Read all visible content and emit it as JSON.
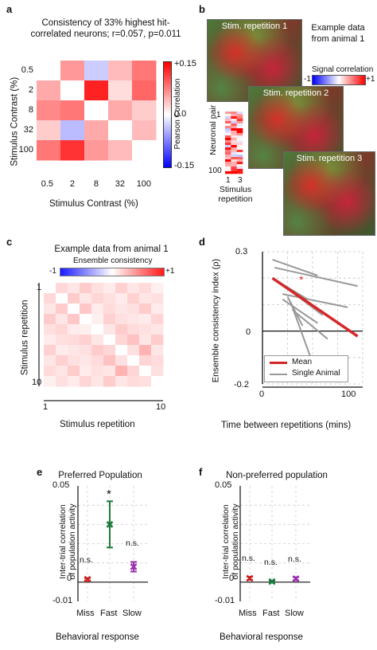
{
  "panels": {
    "a": {
      "label": "a",
      "title_line1": "Consistency of 33% highest hit-",
      "title_line2": "correlated neurons; r=0.057, p=0.011",
      "ylabel": "Stimulus Contrast (%)",
      "xlabel": "Stimulus Contrast (%)",
      "ticks": [
        "0.5",
        "2",
        "8",
        "32",
        "100"
      ],
      "colorbar_label": "Pearson Correlation",
      "colorbar_ticks": [
        "+0.15",
        "0.0",
        "-0.15"
      ]
    },
    "b": {
      "label": "b",
      "example_line1": "Example data",
      "example_line2": "from animal 1",
      "signal_corr_label": "Signal correlation",
      "signal_min": "-1",
      "signal_max": "+1",
      "stim_labels": [
        "Stim. repetition 1",
        "Stim. repetition 2",
        "Stim. repetition 3"
      ],
      "neuronal_pair": "Neuronal pair",
      "pair_ticks": [
        "1",
        "100"
      ],
      "rep_ticks": [
        "1",
        "3"
      ],
      "stimulus_line1": "Stimulus",
      "stimulus_line2": "repetition"
    },
    "c": {
      "label": "c",
      "title": "Example data from animal 1",
      "cbar_label": "Ensemble consistency",
      "cbar_min": "-1",
      "cbar_max": "+1",
      "ylabel": "Stimulus repetition",
      "xlabel": "Stimulus repetition",
      "yticks": [
        "1",
        "10"
      ],
      "xticks": [
        "1",
        "10"
      ]
    },
    "d": {
      "label": "d",
      "star": "*",
      "ylabel": "Ensemble consistency index (ρ)",
      "xlabel": "Time between repetitions (mins)",
      "yticks": [
        "0.3",
        "0",
        "-0.2"
      ],
      "xticks": [
        "0",
        "50",
        "100"
      ],
      "legend_mean": "Mean",
      "legend_single": "Single Animal"
    },
    "e": {
      "label": "e",
      "title": "Preferred Population",
      "ylabel_line1": "Inter-trial correlation",
      "ylabel_line2": "of population activity",
      "yticks": [
        "0.05",
        "0",
        "-0.01"
      ],
      "categories": [
        "Miss",
        "Fast",
        "Slow"
      ],
      "annotations": [
        "n.s.",
        "*",
        "n.s."
      ],
      "xlabel": "Behavioral response"
    },
    "f": {
      "label": "f",
      "title": "Non-preferred population",
      "ylabel_line1": "Inter-trial correlation",
      "ylabel_line2": "of population activity",
      "yticks": [
        "0.05",
        "0",
        "-0.01"
      ],
      "categories": [
        "Miss",
        "Fast",
        "Slow"
      ],
      "annotations": [
        "n.s.",
        "n.s.",
        "n.s."
      ],
      "xlabel": "Behavioral response"
    }
  },
  "chart_data": [
    {
      "panel": "a",
      "type": "heatmap",
      "x": [
        "0.5",
        "2",
        "8",
        "32",
        "100"
      ],
      "y": [
        "0.5",
        "2",
        "8",
        "32",
        "100"
      ],
      "values": [
        [
          0.0,
          0.06,
          -0.03,
          0.04,
          0.08
        ],
        [
          0.05,
          0.0,
          0.13,
          0.02,
          0.09
        ],
        [
          0.07,
          0.08,
          0.0,
          0.05,
          0.03
        ],
        [
          0.03,
          -0.04,
          0.05,
          0.0,
          0.04
        ],
        [
          0.08,
          0.12,
          0.06,
          0.04,
          0.0
        ]
      ],
      "vmin": -0.15,
      "vmax": 0.15
    },
    {
      "panel": "c",
      "type": "heatmap",
      "x_range": [
        1,
        10
      ],
      "y_range": [
        1,
        10
      ],
      "vmin": -1,
      "vmax": 1,
      "values": [
        [
          0,
          0.15,
          0.1,
          0.2,
          0.12,
          0.08,
          0.18,
          0.1,
          0.14,
          0.06
        ],
        [
          0.15,
          0,
          0.2,
          0.1,
          0.16,
          0.12,
          0.08,
          0.18,
          0.1,
          0.12
        ],
        [
          0.1,
          0.2,
          0,
          0.22,
          0.08,
          0.14,
          0.1,
          0.12,
          0.2,
          0.08
        ],
        [
          0.2,
          0.1,
          0.22,
          0,
          0.06,
          0.18,
          0.12,
          0.1,
          0.08,
          0.16
        ],
        [
          0.12,
          0.16,
          0.08,
          0.06,
          0,
          0.1,
          0.2,
          0.14,
          0.12,
          0.1
        ],
        [
          0.08,
          0.12,
          0.14,
          0.18,
          0.1,
          0,
          0.16,
          0.24,
          0.1,
          0.2
        ],
        [
          0.18,
          0.08,
          0.1,
          0.12,
          0.2,
          0.16,
          0,
          0.12,
          0.3,
          0.1
        ],
        [
          0.1,
          0.18,
          0.12,
          0.1,
          0.14,
          0.24,
          0.12,
          0,
          0.16,
          0.14
        ],
        [
          0.14,
          0.1,
          0.2,
          0.08,
          0.12,
          0.1,
          0.3,
          0.16,
          0,
          0.12
        ],
        [
          0.06,
          0.12,
          0.08,
          0.16,
          0.1,
          0.2,
          0.1,
          0.14,
          0.12,
          0
        ]
      ]
    },
    {
      "panel": "d",
      "type": "line",
      "xlim": [
        0,
        100
      ],
      "ylim": [
        -0.2,
        0.3
      ],
      "series": [
        {
          "name": "Mean",
          "color": "#d62728",
          "x": [
            10,
            95
          ],
          "y": [
            0.2,
            -0.02
          ]
        },
        {
          "name": "Single Animal",
          "color": "#999999",
          "lines": [
            {
              "x": [
                10,
                55
              ],
              "y": [
                0.27,
                0.21
              ]
            },
            {
              "x": [
                12,
                95
              ],
              "y": [
                0.24,
                0.17
              ]
            },
            {
              "x": [
                10,
                45
              ],
              "y": [
                0.2,
                0.12
              ]
            },
            {
              "x": [
                20,
                85
              ],
              "y": [
                0.14,
                0.09
              ]
            },
            {
              "x": [
                15,
                60
              ],
              "y": [
                0.19,
                0.06
              ]
            },
            {
              "x": [
                20,
                55
              ],
              "y": [
                0.12,
                0.03
              ]
            },
            {
              "x": [
                25,
                40
              ],
              "y": [
                0.13,
                0.02
              ]
            },
            {
              "x": [
                30,
                65
              ],
              "y": [
                0.08,
                -0.03
              ]
            },
            {
              "x": [
                28,
                50
              ],
              "y": [
                0.11,
                -0.12
              ]
            }
          ]
        }
      ],
      "annotation": "*"
    },
    {
      "panel": "e",
      "type": "scatter",
      "categories": [
        "Miss",
        "Fast",
        "Slow"
      ],
      "values": [
        0.0015,
        0.03,
        0.008
      ],
      "errors": [
        0.0006,
        0.012,
        0.0025
      ],
      "colors": [
        "#cc2222",
        "#1a7a3a",
        "#9b30b0"
      ],
      "ylim": [
        -0.01,
        0.05
      ]
    },
    {
      "panel": "f",
      "type": "scatter",
      "categories": [
        "Miss",
        "Fast",
        "Slow"
      ],
      "values": [
        0.002,
        0.0003,
        0.0018
      ],
      "errors": [
        0.0008,
        0.0003,
        0.0008
      ],
      "colors": [
        "#cc2222",
        "#1a7a3a",
        "#9b30b0"
      ],
      "ylim": [
        -0.01,
        0.05
      ]
    }
  ]
}
